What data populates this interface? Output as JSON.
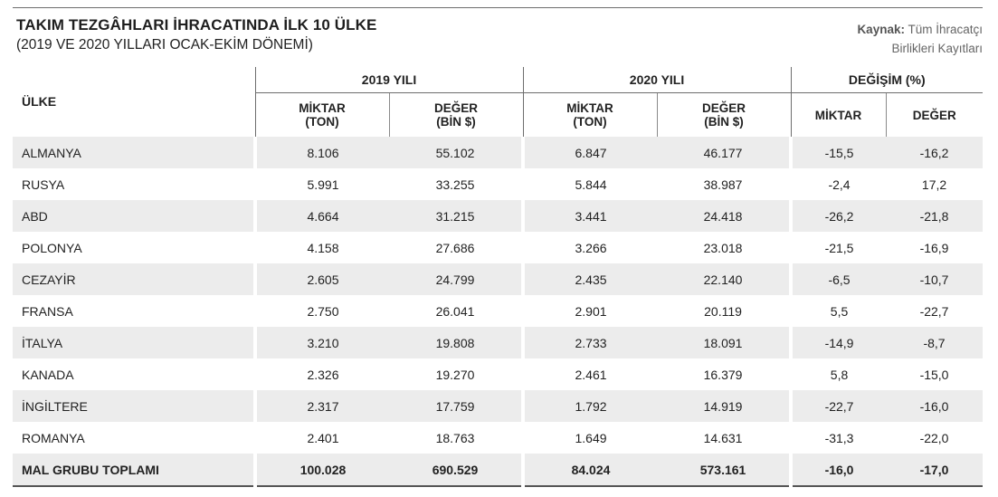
{
  "title": "TAKIM TEZGÂHLARI İHRACATINDA İLK 10 ÜLKE",
  "subtitle": "(2019 VE 2020 YILLARI OCAK-EKİM DÖNEMİ)",
  "source": {
    "label": "Kaynak:",
    "line1": " Tüm İhracatçı",
    "line2": "Birlikleri Kayıtları"
  },
  "table": {
    "country_header": "ÜLKE",
    "groups": [
      "2019 YILI",
      "2020 YILI",
      "DEĞİŞİM (%)"
    ],
    "sub": {
      "miktar_ton_1": "MİKTAR",
      "miktar_ton_2": "(TON)",
      "deger_bin_1": "DEĞER",
      "deger_bin_2": "(BİN $)",
      "miktar": "MİKTAR",
      "deger": "DEĞER"
    },
    "rows": [
      [
        "ALMANYA",
        "8.106",
        "55.102",
        "6.847",
        "46.177",
        "-15,5",
        "-16,2"
      ],
      [
        "RUSYA",
        "5.991",
        "33.255",
        "5.844",
        "38.987",
        "-2,4",
        "17,2"
      ],
      [
        "ABD",
        "4.664",
        "31.215",
        "3.441",
        "24.418",
        "-26,2",
        "-21,8"
      ],
      [
        "POLONYA",
        "4.158",
        "27.686",
        "3.266",
        "23.018",
        "-21,5",
        "-16,9"
      ],
      [
        "CEZAYİR",
        "2.605",
        "24.799",
        "2.435",
        "22.140",
        "-6,5",
        "-10,7"
      ],
      [
        "FRANSA",
        "2.750",
        "26.041",
        "2.901",
        "20.119",
        "5,5",
        "-22,7"
      ],
      [
        "İTALYA",
        "3.210",
        "19.808",
        "2.733",
        "18.091",
        "-14,9",
        "-8,7"
      ],
      [
        "KANADA",
        "2.326",
        "19.270",
        "2.461",
        "16.379",
        "5,8",
        "-15,0"
      ],
      [
        "İNGİLTERE",
        "2.317",
        "17.759",
        "1.792",
        "14.919",
        "-22,7",
        "-16,0"
      ],
      [
        "ROMANYA",
        "2.401",
        "18.763",
        "1.649",
        "14.631",
        "-31,3",
        "-22,0"
      ]
    ],
    "total": [
      "MAL GRUBU TOPLAMI",
      "100.028",
      "690.529",
      "84.024",
      "573.161",
      "-16,0",
      "-17,0"
    ]
  }
}
